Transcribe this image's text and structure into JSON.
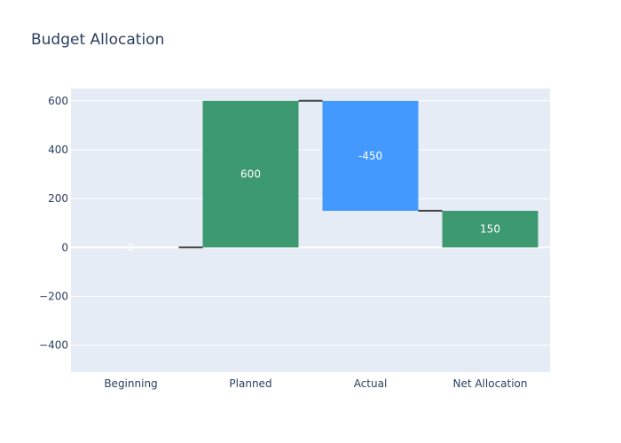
{
  "chart_data": {
    "type": "bar",
    "subtype": "waterfall",
    "title": "Budget Allocation",
    "xlabel": "",
    "ylabel": "",
    "categories": [
      "Beginning",
      "Planned",
      "Actual",
      "Net Allocation"
    ],
    "measures": [
      "absolute",
      "relative",
      "relative",
      "total"
    ],
    "values": [
      0,
      600,
      -450,
      150
    ],
    "text_labels": [
      "0",
      "600",
      "-450",
      "150"
    ],
    "ylim": [
      -510,
      650
    ],
    "yticks": [
      -400,
      -200,
      0,
      200,
      400,
      600
    ],
    "ytick_labels": [
      "−400",
      "−200",
      "0",
      "200",
      "400",
      "600"
    ],
    "grid": true,
    "legend": "none",
    "colors": {
      "increasing": "#3d9970",
      "decreasing": "#4499ff",
      "total": "#3d9970",
      "plot_background": "#e5ecf6",
      "connector": "#444444"
    }
  }
}
